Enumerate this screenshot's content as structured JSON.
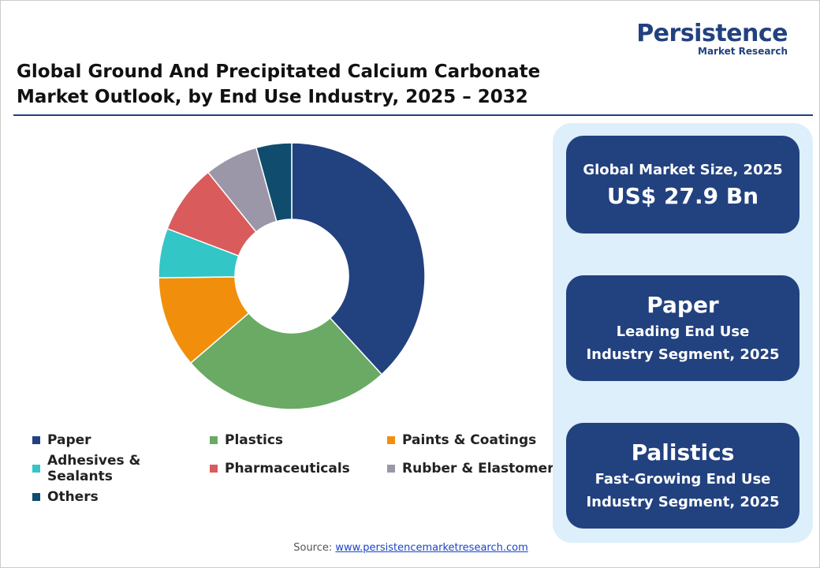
{
  "logo": {
    "name": "Persistence",
    "tagline": "Market Research"
  },
  "chart_data": {
    "type": "pie",
    "title": "Global Ground And Precipitated Calcium Carbonate Market Outlook, by End Use Industry, 2025 – 2032",
    "categories": [
      "Paper",
      "Plastics",
      "Paints & Coatings",
      "Adhesives & Sealants",
      "Pharmaceuticals",
      "Rubber & Elastomers",
      "Others"
    ],
    "values": [
      38.2,
      25.5,
      11.1,
      6.0,
      8.4,
      6.5,
      4.3
    ],
    "colors": [
      "#22417f",
      "#6aaa64",
      "#f18f0c",
      "#33c6c6",
      "#d95b5b",
      "#9b97a8",
      "#0f4c6e"
    ],
    "donut": true
  },
  "cards": [
    {
      "label": "Global Market Size, 2025",
      "value": "US$ 27.9 Bn"
    },
    {
      "value": "Paper",
      "label": "Leading End Use Industry Segment, 2025"
    },
    {
      "value": "Palistics",
      "label": "Fast-Growing End Use Industry Segment, 2025"
    }
  ],
  "source": {
    "label": "Source:",
    "link": "www.persistencemarketresearch.com"
  }
}
